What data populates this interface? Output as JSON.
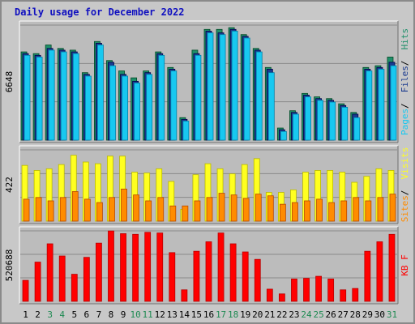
{
  "chart_data": {
    "type": "bar",
    "title": "Daily usage for December 2022",
    "categories": [
      "1",
      "2",
      "3",
      "4",
      "5",
      "6",
      "7",
      "8",
      "9",
      "10",
      "11",
      "12",
      "13",
      "14",
      "15",
      "16",
      "17",
      "18",
      "19",
      "20",
      "21",
      "22",
      "23",
      "24",
      "25",
      "26",
      "27",
      "28",
      "29",
      "30",
      "31"
    ],
    "weekend_days": [
      "3",
      "4",
      "10",
      "11",
      "17",
      "18",
      "24",
      "25",
      "31"
    ],
    "panels": [
      {
        "name": "pages-files-hits",
        "max_label": "6648",
        "ylim": [
          0,
          6648
        ],
        "legend_labels": [
          "Pages",
          "Files",
          "Hits"
        ],
        "series": [
          {
            "name": "Hits",
            "color": "#1f8f6a",
            "values": [
              5100,
              5000,
              5500,
              5300,
              5200,
              3900,
              5700,
              4600,
              4000,
              3600,
              4000,
              5100,
              4200,
              1300,
              5200,
              6400,
              6400,
              6500,
              6100,
              5300,
              4200,
              700,
              1700,
              2700,
              2500,
              2400,
              2100,
              1600,
              4200,
              4300,
              4800
            ]
          },
          {
            "name": "Files",
            "color": "#1a3a8f",
            "values": [
              5000,
              4900,
              5300,
              5200,
              5100,
              3800,
              5600,
              4500,
              3800,
              3400,
              3900,
              5000,
              4100,
              1200,
              5000,
              6300,
              6200,
              6400,
              6000,
              5200,
              4100,
              600,
              1600,
              2600,
              2400,
              2300,
              2000,
              1500,
              4100,
              4200,
              4500
            ]
          },
          {
            "name": "Pages",
            "color": "#18c8f0",
            "values": [
              4900,
              4800,
              5200,
              5100,
              5000,
              3700,
              5500,
              4300,
              3700,
              3300,
              3800,
              4900,
              4000,
              1100,
              4900,
              6200,
              6100,
              6300,
              5900,
              5100,
              3900,
              500,
              1500,
              2500,
              2300,
              2200,
              1900,
              1300,
              4000,
              4100,
              4300
            ]
          }
        ]
      },
      {
        "name": "visits-sites",
        "max_label": "422",
        "ylim": [
          0,
          422
        ],
        "legend_labels": [
          "Sites",
          "Visits"
        ],
        "series": [
          {
            "name": "Visits",
            "color": "#ffff20",
            "values": [
              330,
              300,
              310,
              335,
              390,
              350,
              340,
              385,
              385,
              290,
              285,
              310,
              235,
              70,
              275,
              340,
              310,
              280,
              335,
              370,
              170,
              170,
              185,
              290,
              300,
              300,
              290,
              230,
              265,
              310,
              300
            ]
          },
          {
            "name": "Sites",
            "color": "#ff8c00",
            "values": [
              130,
              140,
              120,
              140,
              175,
              130,
              110,
              140,
              190,
              155,
              120,
              140,
              90,
              90,
              120,
              140,
              165,
              155,
              135,
              160,
              150,
              100,
              110,
              120,
              130,
              110,
              120,
              140,
              120,
              140,
              160
            ]
          }
        ]
      },
      {
        "name": "kbf",
        "max_label": "520688",
        "ylim": [
          0,
          520688
        ],
        "legend_labels": [
          "KB F"
        ],
        "series": [
          {
            "name": "KB F",
            "color": "#ff0000",
            "values": [
              155000,
              290000,
              425000,
              335000,
              200000,
              325000,
              430000,
              520000,
              500000,
              495000,
              510000,
              505000,
              360000,
              85000,
              370000,
              440000,
              505000,
              425000,
              365000,
              310000,
              90000,
              55000,
              165000,
              170000,
              185000,
              165000,
              85000,
              95000,
              370000,
              440000,
              495000
            ]
          }
        ]
      }
    ]
  }
}
